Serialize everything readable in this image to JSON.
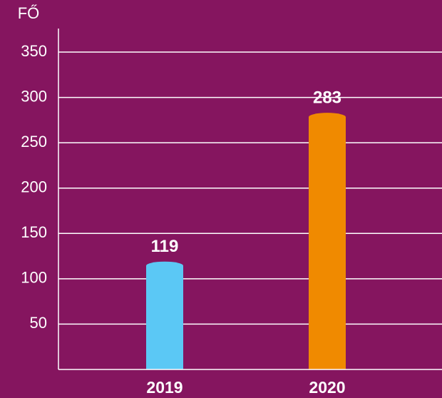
{
  "chart_data": {
    "type": "bar",
    "y_label": "FŐ",
    "categories": [
      "2019",
      "2020"
    ],
    "values": [
      119,
      283
    ],
    "colors": [
      "#5bc8f5",
      "#f08a00"
    ],
    "ylim": [
      0,
      350
    ],
    "yticks": [
      50,
      100,
      150,
      200,
      250,
      300,
      350
    ],
    "grid": true
  }
}
